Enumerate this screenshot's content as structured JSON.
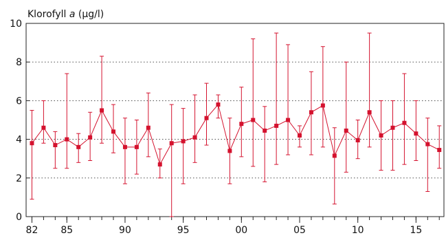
{
  "chart_data": {
    "type": "line",
    "title_prefix": "Klorofyll ",
    "title_italic": "a",
    "title_suffix": " (µg/l)",
    "xlim": [
      1981.5,
      2017.4
    ],
    "ylim": [
      0,
      10
    ],
    "yticks": [
      0,
      2,
      4,
      6,
      8,
      10
    ],
    "grid_y": [
      2,
      4,
      6,
      8
    ],
    "xticks": [
      {
        "x": 1982,
        "label": "82"
      },
      {
        "x": 1985,
        "label": "85"
      },
      {
        "x": 1990,
        "label": "90"
      },
      {
        "x": 1995,
        "label": "95"
      },
      {
        "x": 2000,
        "label": "00"
      },
      {
        "x": 2005,
        "label": "05"
      },
      {
        "x": 2010,
        "label": "10"
      },
      {
        "x": 2015,
        "label": "15"
      }
    ],
    "minor_xticks": [
      1982,
      1983,
      1984,
      1985,
      1986,
      1987,
      1988,
      1989,
      1990,
      1991,
      1992,
      1993,
      1994,
      1995,
      1996,
      1997,
      1998,
      1999,
      2000,
      2001,
      2002,
      2003,
      2004,
      2005,
      2006,
      2007,
      2008,
      2009,
      2010,
      2011,
      2012,
      2013,
      2014,
      2015,
      2016,
      2017
    ],
    "color": "#d4122e",
    "series": [
      {
        "points": [
          {
            "x": 1982,
            "y": 3.8,
            "low": 0.9,
            "high": 5.5
          },
          {
            "x": 1983,
            "y": 4.6,
            "low": 3.8,
            "high": 6.0
          },
          {
            "x": 1984,
            "y": 3.7,
            "low": 2.5,
            "high": 4.4
          },
          {
            "x": 1985,
            "y": 4.0,
            "low": 2.5,
            "high": 7.4
          },
          {
            "x": 1986,
            "y": 3.6,
            "low": 2.8,
            "high": 4.3
          },
          {
            "x": 1987,
            "y": 4.1,
            "low": 2.9,
            "high": 5.4
          },
          {
            "x": 1988,
            "y": 5.5,
            "low": 3.8,
            "high": 8.3
          },
          {
            "x": 1989,
            "y": 4.4,
            "low": 3.3,
            "high": 5.8
          },
          {
            "x": 1990,
            "y": 3.6,
            "low": 1.7,
            "high": 5.1
          },
          {
            "x": 1991,
            "y": 3.6,
            "low": 2.2,
            "high": 5.0
          },
          {
            "x": 1992,
            "y": 4.6,
            "low": 3.1,
            "high": 6.4
          },
          {
            "x": 1993,
            "y": 2.7,
            "low": 2.0,
            "high": 3.5
          },
          {
            "x": 1994,
            "y": 3.8,
            "low": 0.0,
            "high": 5.8
          },
          {
            "x": 1995,
            "y": 3.9,
            "low": 1.7,
            "high": 5.6
          },
          {
            "x": 1996,
            "y": 4.1,
            "low": 2.8,
            "high": 6.3
          },
          {
            "x": 1997,
            "y": 5.1,
            "low": 3.7,
            "high": 6.9
          },
          {
            "x": 1998,
            "y": 5.8,
            "low": 5.1,
            "high": 6.3
          },
          {
            "x": 1999,
            "y": 3.4,
            "low": 1.7,
            "high": 5.1
          },
          {
            "x": 2000,
            "y": 4.8,
            "low": 3.1,
            "high": 6.7
          },
          {
            "x": 2001,
            "y": 5.0,
            "low": 2.6,
            "high": 9.2
          },
          {
            "x": 2002,
            "y": 4.45,
            "low": 1.8,
            "high": 5.7
          },
          {
            "x": 2003,
            "y": 4.7,
            "low": 2.7,
            "high": 9.5
          },
          {
            "x": 2004,
            "y": 5.0,
            "low": 3.2,
            "high": 8.9
          },
          {
            "x": 2005,
            "y": 4.2,
            "low": 3.6,
            "high": 4.7
          },
          {
            "x": 2006,
            "y": 5.4,
            "low": 3.2,
            "high": 7.5
          },
          {
            "x": 2007,
            "y": 5.75,
            "low": 3.6,
            "high": 8.8
          },
          {
            "x": 2008,
            "y": 3.15,
            "low": 0.65,
            "high": 4.6
          },
          {
            "x": 2009,
            "y": 4.45,
            "low": 2.3,
            "high": 8.0
          },
          {
            "x": 2010,
            "y": 3.95,
            "low": 3.0,
            "high": 5.0
          },
          {
            "x": 2011,
            "y": 5.4,
            "low": 3.6,
            "high": 9.5
          },
          {
            "x": 2012,
            "y": 4.2,
            "low": 2.4,
            "high": 6.0
          },
          {
            "x": 2013,
            "y": 4.6,
            "low": 2.4,
            "high": 6.0
          },
          {
            "x": 2014,
            "y": 4.85,
            "low": 2.7,
            "high": 7.4
          },
          {
            "x": 2015,
            "y": 4.3,
            "low": 2.9,
            "high": 6.0
          },
          {
            "x": 2016,
            "y": 3.75,
            "low": 1.3,
            "high": 5.1
          },
          {
            "x": 2017,
            "y": 3.45,
            "low": 2.5,
            "high": 4.7
          }
        ]
      }
    ]
  }
}
